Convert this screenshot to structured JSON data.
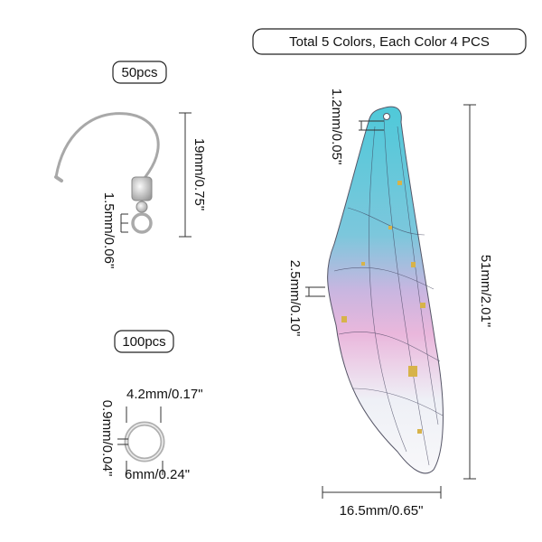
{
  "header": {
    "badge": "Total 5 Colors, Each Color 4 PCS"
  },
  "hook": {
    "quantity": "50pcs",
    "height": "19mm/0.75\"",
    "loop": "1.5mm/0.06\""
  },
  "ring": {
    "quantity": "100pcs",
    "inner": "4.2mm/0.17\"",
    "thickness": "0.9mm/0.04\"",
    "outer": "6mm/0.24\""
  },
  "wing": {
    "hole": "1.2mm/0.05\"",
    "thickness": "2.5mm/0.10\"",
    "length": "51mm/2.01\"",
    "width": "16.5mm/0.65\""
  }
}
